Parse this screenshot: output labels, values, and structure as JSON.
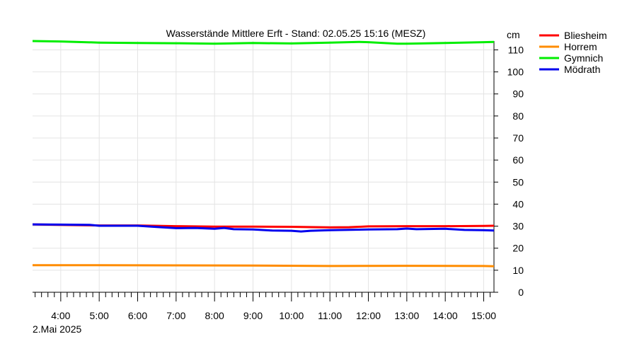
{
  "chart_data": {
    "type": "line",
    "title": "Wasserstände Mittlere Erft - Stand: 02.05.25 15:16 (MESZ)",
    "xlabel": "",
    "ylabel": "cm",
    "date_label": "2.Mai 2025",
    "x_range": [
      "2025-05-02T03:16",
      "2025-05-02T15:16"
    ],
    "ylim": [
      0,
      114
    ],
    "y_ticks": [
      0,
      10,
      20,
      30,
      40,
      50,
      60,
      70,
      80,
      90,
      100,
      110
    ],
    "x_ticks": [
      "4:00",
      "5:00",
      "6:00",
      "7:00",
      "8:00",
      "9:00",
      "10:00",
      "11:00",
      "12:00",
      "13:00",
      "14:00",
      "15:00"
    ],
    "grid": true,
    "legend_position": "right",
    "series": [
      {
        "name": "Bliesheim",
        "color": "#ff0000",
        "x": [
          "03:16",
          "04:00",
          "05:00",
          "06:00",
          "07:00",
          "08:00",
          "09:00",
          "10:00",
          "11:00",
          "11:30",
          "12:00",
          "13:00",
          "14:00",
          "15:00",
          "15:16"
        ],
        "y": [
          30.8,
          30.6,
          30.3,
          30.3,
          30.0,
          29.8,
          29.8,
          29.7,
          29.4,
          29.5,
          29.9,
          30.0,
          30.0,
          30.1,
          30.2
        ]
      },
      {
        "name": "Horrem",
        "color": "#ff8c00",
        "x": [
          "03:16",
          "05:00",
          "07:00",
          "09:00",
          "11:00",
          "13:00",
          "15:00",
          "15:16"
        ],
        "y": [
          12.3,
          12.3,
          12.2,
          12.1,
          11.9,
          12.0,
          11.9,
          11.8
        ]
      },
      {
        "name": "Gymnich",
        "color": "#00ee00",
        "x": [
          "03:16",
          "04:00",
          "05:00",
          "06:00",
          "07:00",
          "08:00",
          "09:00",
          "10:00",
          "11:00",
          "11:45",
          "12:00",
          "12:45",
          "13:00",
          "14:00",
          "15:00",
          "15:16"
        ],
        "y": [
          114.0,
          113.8,
          113.3,
          113.1,
          113.0,
          112.8,
          113.1,
          112.9,
          113.3,
          113.6,
          113.5,
          112.8,
          112.8,
          113.1,
          113.5,
          113.6
        ]
      },
      {
        "name": "Mödrath",
        "color": "#0000ee",
        "x": [
          "03:16",
          "04:00",
          "04:45",
          "05:00",
          "06:00",
          "06:30",
          "07:00",
          "07:30",
          "08:00",
          "08:15",
          "08:30",
          "09:00",
          "09:30",
          "10:00",
          "10:15",
          "10:30",
          "11:00",
          "12:00",
          "12:45",
          "13:00",
          "13:15",
          "14:00",
          "14:30",
          "15:00",
          "15:16"
        ],
        "y": [
          30.8,
          30.7,
          30.6,
          30.2,
          30.2,
          29.6,
          29.1,
          29.2,
          28.8,
          29.2,
          28.6,
          28.5,
          28.0,
          27.9,
          27.6,
          27.9,
          28.2,
          28.5,
          28.6,
          28.9,
          28.6,
          28.8,
          28.3,
          28.2,
          28.0
        ]
      }
    ]
  }
}
